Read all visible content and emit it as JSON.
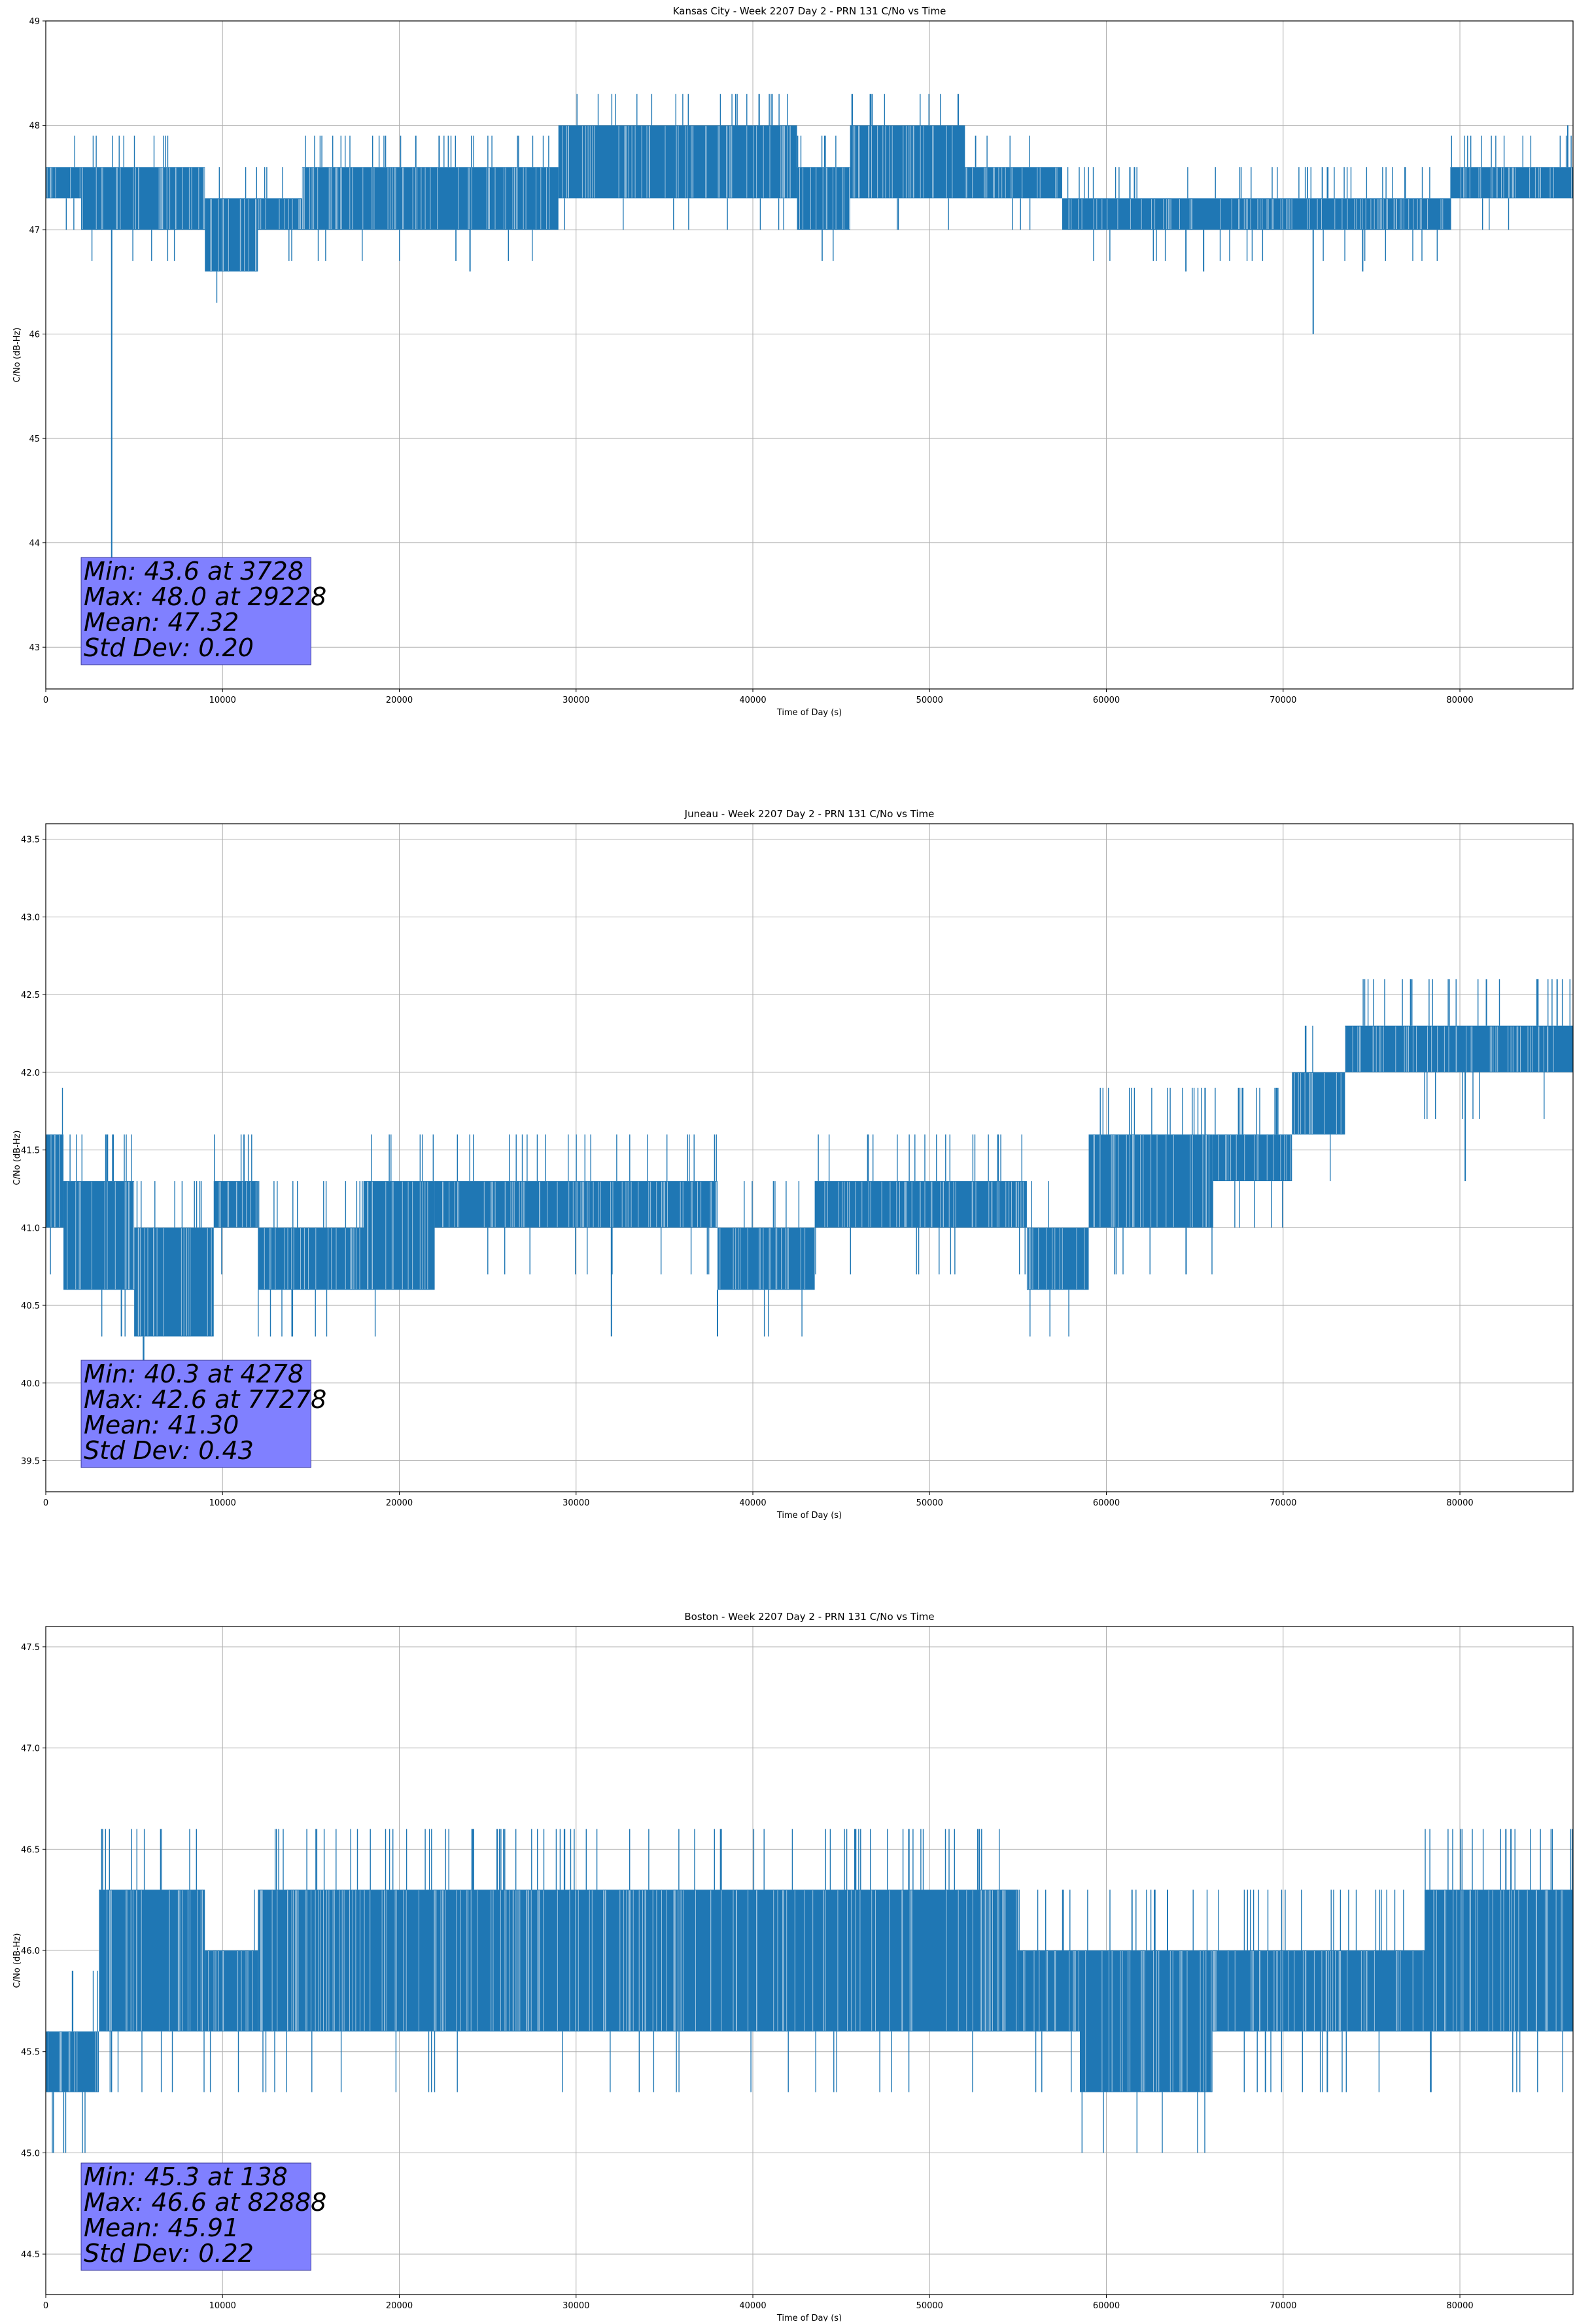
{
  "chart_data": [
    {
      "type": "line",
      "title": "Kansas City - Week 2207 Day 2 - PRN 131 C/No vs Time",
      "xlabel": "Time of Day (s)",
      "ylabel": "C/No (dB-Hz)",
      "xlim": [
        0,
        86400
      ],
      "ylim": [
        42.6,
        49.0
      ],
      "x_ticks": [
        0,
        10000,
        20000,
        30000,
        40000,
        50000,
        60000,
        70000,
        80000
      ],
      "y_ticks": [
        43,
        44,
        45,
        46,
        47,
        48,
        49
      ],
      "y_tick_labels": [
        "43",
        "44",
        "45",
        "46",
        "47",
        "48",
        "49"
      ],
      "grid": true,
      "quantization_step": 0.3,
      "series": [
        {
          "color": "#1f77b4",
          "segments": [
            {
              "x": [
                0,
                2000
              ],
              "lo": 47.3,
              "hi": 47.6
            },
            {
              "x": [
                2000,
                9000
              ],
              "lo": 47.0,
              "hi": 47.6
            },
            {
              "x": [
                9000,
                12000
              ],
              "lo": 46.6,
              "hi": 47.3
            },
            {
              "x": [
                12000,
                14500
              ],
              "lo": 47.0,
              "hi": 47.3
            },
            {
              "x": [
                14500,
                29000
              ],
              "lo": 47.0,
              "hi": 47.6
            },
            {
              "x": [
                29000,
                42500
              ],
              "lo": 47.3,
              "hi": 48.0
            },
            {
              "x": [
                42500,
                45500
              ],
              "lo": 47.0,
              "hi": 47.6
            },
            {
              "x": [
                45500,
                52000
              ],
              "lo": 47.3,
              "hi": 48.0
            },
            {
              "x": [
                52000,
                57500
              ],
              "lo": 47.3,
              "hi": 47.6
            },
            {
              "x": [
                57500,
                79500
              ],
              "lo": 47.0,
              "hi": 47.3
            },
            {
              "x": [
                79500,
                86400
              ],
              "lo": 47.3,
              "hi": 47.6
            }
          ],
          "spikes": [
            {
              "x": 3728,
              "y": 43.6
            },
            {
              "x": 24000,
              "y": 46.6
            },
            {
              "x": 71700,
              "y": 46.0
            },
            {
              "x": 64500,
              "y": 46.6
            },
            {
              "x": 65500,
              "y": 46.6
            },
            {
              "x": 74500,
              "y": 46.6
            },
            {
              "x": 29228,
              "y": 48.0
            },
            {
              "x": 86100,
              "y": 48.0
            }
          ]
        }
      ],
      "annotation": {
        "lines": [
          "Min: 43.6 at 3728",
          "Max: 48.0 at 29228",
          "Mean: 47.32",
          "Std Dev: 0.20"
        ],
        "color": "#8080ff"
      }
    },
    {
      "type": "line",
      "title": "Juneau - Week 2207 Day 2 - PRN 131 C/No vs Time",
      "xlabel": "Time of Day (s)",
      "ylabel": "C/No (dB-Hz)",
      "xlim": [
        0,
        86400
      ],
      "ylim": [
        39.3,
        43.6
      ],
      "x_ticks": [
        0,
        10000,
        20000,
        30000,
        40000,
        50000,
        60000,
        70000,
        80000
      ],
      "y_ticks": [
        39.5,
        40.0,
        40.5,
        41.0,
        41.5,
        42.0,
        42.5,
        43.0,
        43.5
      ],
      "y_tick_labels": [
        "39.5",
        "40.0",
        "40.5",
        "41.0",
        "41.5",
        "42.0",
        "42.5",
        "43.0",
        "43.5"
      ],
      "grid": true,
      "quantization_step": 0.3,
      "series": [
        {
          "color": "#1f77b4",
          "segments": [
            {
              "x": [
                0,
                1000
              ],
              "lo": 41.0,
              "hi": 41.6
            },
            {
              "x": [
                1000,
                5000
              ],
              "lo": 40.6,
              "hi": 41.3
            },
            {
              "x": [
                5000,
                9500
              ],
              "lo": 40.3,
              "hi": 41.0
            },
            {
              "x": [
                9500,
                12000
              ],
              "lo": 41.0,
              "hi": 41.3
            },
            {
              "x": [
                12000,
                18000
              ],
              "lo": 40.6,
              "hi": 41.0
            },
            {
              "x": [
                18000,
                22000
              ],
              "lo": 40.6,
              "hi": 41.3
            },
            {
              "x": [
                22000,
                38000
              ],
              "lo": 41.0,
              "hi": 41.3
            },
            {
              "x": [
                38000,
                43500
              ],
              "lo": 40.6,
              "hi": 41.0
            },
            {
              "x": [
                43500,
                55500
              ],
              "lo": 41.0,
              "hi": 41.3
            },
            {
              "x": [
                55500,
                59000
              ],
              "lo": 40.6,
              "hi": 41.0
            },
            {
              "x": [
                59000,
                66000
              ],
              "lo": 41.0,
              "hi": 41.6
            },
            {
              "x": [
                66000,
                70500
              ],
              "lo": 41.3,
              "hi": 41.6
            },
            {
              "x": [
                70500,
                73500
              ],
              "lo": 41.6,
              "hi": 42.0
            },
            {
              "x": [
                73500,
                79000
              ],
              "lo": 42.0,
              "hi": 42.3
            },
            {
              "x": [
                79000,
                86400
              ],
              "lo": 42.0,
              "hi": 42.3
            }
          ],
          "spikes": [
            {
              "x": 4278,
              "y": 40.3
            },
            {
              "x": 32000,
              "y": 40.3
            },
            {
              "x": 38000,
              "y": 40.3
            },
            {
              "x": 77278,
              "y": 42.6
            },
            {
              "x": 85500,
              "y": 42.6
            },
            {
              "x": 81500,
              "y": 42.6
            },
            {
              "x": 80300,
              "y": 41.3
            }
          ]
        }
      ],
      "annotation": {
        "lines": [
          "Min: 40.3 at 4278",
          "Max: 42.6 at 77278",
          "Mean: 41.30",
          "Std Dev: 0.43"
        ],
        "color": "#8080ff"
      }
    },
    {
      "type": "line",
      "title": "Boston - Week 2207 Day 2 - PRN 131 C/No vs Time",
      "xlabel": "Time of Day (s)",
      "ylabel": "C/No (dB-Hz)",
      "xlim": [
        0,
        86400
      ],
      "ylim": [
        44.3,
        47.6
      ],
      "x_ticks": [
        0,
        10000,
        20000,
        30000,
        40000,
        50000,
        60000,
        70000,
        80000
      ],
      "y_ticks": [
        44.5,
        45.0,
        45.5,
        46.0,
        46.5,
        47.0,
        47.5
      ],
      "y_tick_labels": [
        "44.5",
        "45.0",
        "45.5",
        "46.0",
        "46.5",
        "47.0",
        "47.5"
      ],
      "grid": true,
      "quantization_step": 0.3,
      "series": [
        {
          "color": "#1f77b4",
          "segments": [
            {
              "x": [
                0,
                3000
              ],
              "lo": 45.3,
              "hi": 45.6
            },
            {
              "x": [
                3000,
                9000
              ],
              "lo": 45.6,
              "hi": 46.3
            },
            {
              "x": [
                9000,
                12000
              ],
              "lo": 45.6,
              "hi": 46.0
            },
            {
              "x": [
                12000,
                55000
              ],
              "lo": 45.6,
              "hi": 46.3
            },
            {
              "x": [
                55000,
                58500
              ],
              "lo": 45.6,
              "hi": 46.0
            },
            {
              "x": [
                58500,
                66000
              ],
              "lo": 45.3,
              "hi": 46.0
            },
            {
              "x": [
                66000,
                78000
              ],
              "lo": 45.6,
              "hi": 46.0
            },
            {
              "x": [
                78000,
                86400
              ],
              "lo": 45.6,
              "hi": 46.3
            }
          ],
          "spikes": [
            {
              "x": 138,
              "y": 45.3
            },
            {
              "x": 82888,
              "y": 46.6
            },
            {
              "x": 82600,
              "y": 46.6
            },
            {
              "x": 69000,
              "y": 45.3
            },
            {
              "x": 72500,
              "y": 45.3
            }
          ]
        }
      ],
      "annotation": {
        "lines": [
          "Min: 45.3 at 138",
          "Max: 46.6 at 82888",
          "Mean: 45.91",
          "Std Dev: 0.22"
        ],
        "color": "#8080ff"
      }
    }
  ]
}
